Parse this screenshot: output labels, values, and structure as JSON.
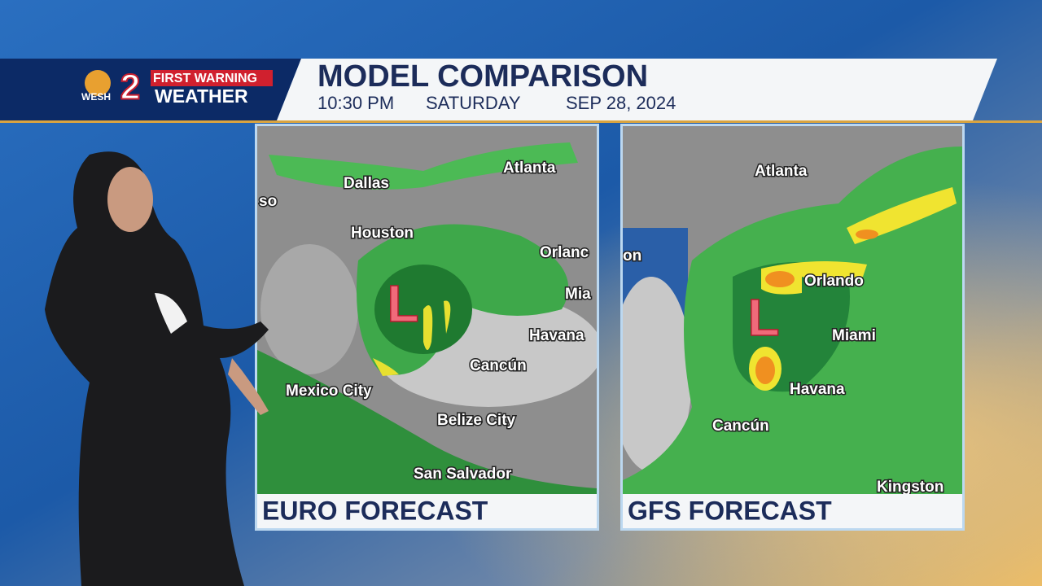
{
  "header": {
    "logo": {
      "station": "WESH",
      "channel": "2",
      "tag": "FIRST WARNING",
      "brand": "WEATHER"
    },
    "title": "MODEL COMPARISON",
    "time": "10:30 PM",
    "day": "SATURDAY",
    "date": "SEP 28, 2024"
  },
  "panels": [
    {
      "caption": "EURO FORECAST",
      "low_marker": "L",
      "labels": [
        "so",
        "Dallas",
        "Atlanta",
        "Houston",
        "Orlanc",
        "Mia",
        "Havana",
        "Cancún",
        "Mexico City",
        "Belize City",
        "San Salvador"
      ]
    },
    {
      "caption": "GFS FORECAST",
      "low_marker": "L",
      "labels": [
        "Atlanta",
        "on",
        "Orlando",
        "Miami",
        "Havana",
        "Cancún",
        "Kingston"
      ]
    }
  ]
}
